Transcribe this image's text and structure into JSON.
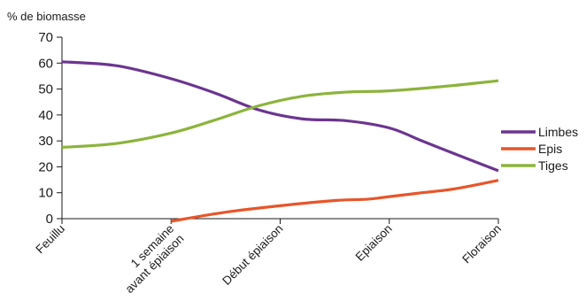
{
  "chart_data": {
    "type": "line",
    "ylabel": "% de biomasse",
    "ylim": [
      0,
      70
    ],
    "yticks": [
      0,
      10,
      20,
      30,
      40,
      50,
      60,
      70
    ],
    "grid": false,
    "legend_position": "right",
    "categories": [
      {
        "id": "feuillu",
        "lines": [
          "Feuillu"
        ]
      },
      {
        "id": "1-semaine",
        "lines": [
          "1 semaine",
          "avant épiaison"
        ]
      },
      {
        "id": "debut-epiaison",
        "lines": [
          "Début épiaison"
        ]
      },
      {
        "id": "epiaison",
        "lines": [
          "Epiaison"
        ]
      },
      {
        "id": "floraison",
        "lines": [
          "Floraison"
        ]
      }
    ],
    "series": [
      {
        "name": "Limbes",
        "color": "#6b3590",
        "x": [
          0,
          0.5,
          1,
          1.4,
          1.8,
          2.2,
          2.6,
          3.0,
          3.3,
          3.6,
          4.0
        ],
        "y": [
          60.5,
          59,
          54,
          48.5,
          42,
          38.5,
          37.8,
          35,
          30,
          25,
          18.5
        ]
      },
      {
        "name": "Epis",
        "color": "#e8552a",
        "x": [
          1,
          1.5,
          2,
          2.5,
          2.8,
          3.0,
          3.3,
          3.6,
          4.0
        ],
        "y": [
          -1,
          2.5,
          5,
          7,
          7.5,
          8.5,
          10,
          11.5,
          14.8
        ]
      },
      {
        "name": "Tiges",
        "color": "#8cb43c",
        "x": [
          0,
          0.5,
          1,
          1.4,
          1.8,
          2.2,
          2.6,
          3.0,
          3.5,
          4.0
        ],
        "y": [
          27.5,
          29,
          33,
          38,
          43.5,
          47.2,
          48.8,
          49.3,
          51,
          53.2
        ]
      }
    ]
  }
}
